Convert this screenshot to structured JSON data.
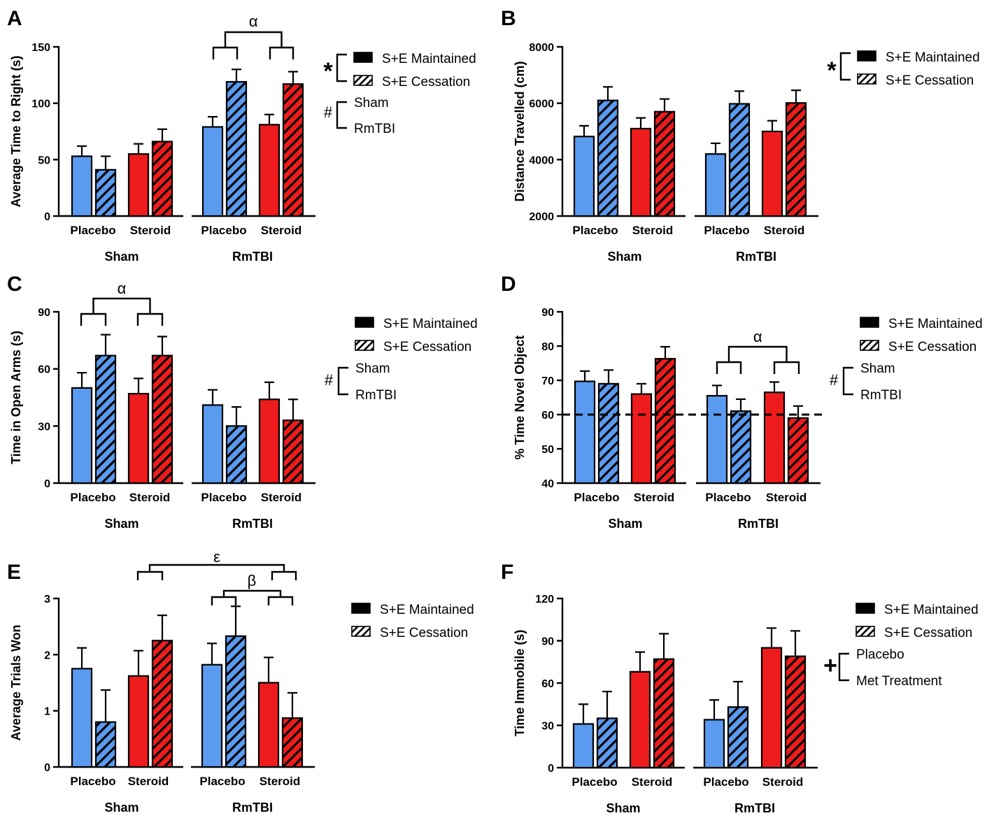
{
  "figure": {
    "bar_colors": {
      "placebo": "#5b9bef",
      "steroid": "#ee1c1c",
      "outline": "#000000"
    },
    "fill_key": {
      "solid": "S+E Maintained",
      "hatched": "S+E Cessation"
    }
  },
  "chart_data": [
    {
      "panel": "A",
      "type": "bar",
      "ylabel": "Average Time to Right (s)",
      "ylim": [
        0,
        150
      ],
      "yticks": [
        "0",
        "50",
        "100",
        "150"
      ],
      "groups": [
        "Sham",
        "RmTBI"
      ],
      "categories": [
        "Placebo",
        "Steroid",
        "Placebo",
        "Steroid"
      ],
      "series": [
        {
          "name": "S+E Maintained",
          "values": [
            53,
            55,
            79,
            81
          ],
          "errors": [
            9,
            9,
            9,
            9
          ]
        },
        {
          "name": "S+E Cessation",
          "values": [
            41,
            66,
            119,
            117
          ],
          "errors": [
            12,
            11,
            11,
            11
          ]
        }
      ],
      "legend": {
        "items": [
          "S+E Maintained",
          "S+E Cessation"
        ],
        "effects": [
          {
            "symbol": "*",
            "labels": [
              "S+E Maintained",
              "S+E Cessation"
            ]
          },
          {
            "symbol": "#",
            "labels": [
              "Sham",
              "RmTBI"
            ]
          }
        ]
      },
      "annotations": [
        {
          "symbol": "α",
          "between": "RmTBI groups"
        }
      ]
    },
    {
      "panel": "B",
      "type": "bar",
      "ylabel": "Distance Travelled (cm)",
      "ylim": [
        2000,
        8000
      ],
      "yticks": [
        "2000",
        "4000",
        "6000",
        "8000"
      ],
      "groups": [
        "Sham",
        "RmTBI"
      ],
      "categories": [
        "Placebo",
        "Steroid",
        "Placebo",
        "Steroid"
      ],
      "series": [
        {
          "name": "S+E Maintained",
          "values": [
            4820,
            5100,
            4200,
            5000
          ],
          "errors": [
            380,
            380,
            380,
            380
          ]
        },
        {
          "name": "S+E Cessation",
          "values": [
            6100,
            5700,
            5980,
            6010
          ],
          "errors": [
            480,
            450,
            450,
            450
          ]
        }
      ],
      "legend": {
        "items": [
          "S+E Maintained",
          "S+E Cessation"
        ],
        "effects": [
          {
            "symbol": "*",
            "labels": [
              "S+E Maintained",
              "S+E Cessation"
            ]
          }
        ]
      },
      "annotations": []
    },
    {
      "panel": "C",
      "type": "bar",
      "ylabel": "Time in Open Arms (s)",
      "ylim": [
        0,
        90
      ],
      "yticks": [
        "0",
        "30",
        "60",
        "90"
      ],
      "groups": [
        "Sham",
        "RmTBI"
      ],
      "categories": [
        "Placebo",
        "Steroid",
        "Placebo",
        "Steroid"
      ],
      "series": [
        {
          "name": "S+E Maintained",
          "values": [
            50,
            47,
            41,
            44
          ],
          "errors": [
            8,
            8,
            8,
            9
          ]
        },
        {
          "name": "S+E Cessation",
          "values": [
            67,
            67,
            30,
            33
          ],
          "errors": [
            11,
            10,
            10,
            11
          ]
        }
      ],
      "legend": {
        "items": [
          "S+E Maintained",
          "S+E Cessation"
        ],
        "effects": [
          {
            "symbol": "#",
            "labels": [
              "Sham",
              "RmTBI"
            ]
          }
        ]
      },
      "annotations": [
        {
          "symbol": "α",
          "between": "Sham groups"
        }
      ]
    },
    {
      "panel": "D",
      "type": "bar",
      "ylabel": "% Time Novel Object",
      "ylim": [
        40,
        90
      ],
      "yticks": [
        "40",
        "50",
        "60",
        "70",
        "80",
        "90"
      ],
      "reference_line": 60,
      "groups": [
        "Sham",
        "RmTBI"
      ],
      "categories": [
        "Placebo",
        "Steroid",
        "Placebo",
        "Steroid"
      ],
      "series": [
        {
          "name": "S+E Maintained",
          "values": [
            69.7,
            66,
            65.5,
            66.5
          ],
          "errors": [
            3,
            3,
            3,
            3
          ]
        },
        {
          "name": "S+E Cessation",
          "values": [
            69,
            76.3,
            61,
            59
          ],
          "errors": [
            4,
            3.5,
            3.5,
            3.5
          ]
        }
      ],
      "legend": {
        "items": [
          "S+E Maintained",
          "S+E Cessation"
        ],
        "effects": [
          {
            "symbol": "#",
            "labels": [
              "Sham",
              "RmTBI"
            ]
          }
        ]
      },
      "annotations": [
        {
          "symbol": "α",
          "between": "RmTBI groups"
        }
      ]
    },
    {
      "panel": "E",
      "type": "bar",
      "ylabel": "Average Trials Won",
      "ylim": [
        0,
        3
      ],
      "yticks": [
        "0",
        "1",
        "2",
        "3"
      ],
      "groups": [
        "Sham",
        "RmTBI"
      ],
      "categories": [
        "Placebo",
        "Steroid",
        "Placebo",
        "Steroid"
      ],
      "series": [
        {
          "name": "S+E Maintained",
          "values": [
            1.75,
            1.62,
            1.82,
            1.5
          ],
          "errors": [
            0.37,
            0.45,
            0.38,
            0.45
          ]
        },
        {
          "name": "S+E Cessation",
          "values": [
            0.8,
            2.25,
            2.33,
            0.87
          ],
          "errors": [
            0.57,
            0.45,
            0.53,
            0.45
          ]
        }
      ],
      "legend": {
        "items": [
          "S+E Maintained",
          "S+E Cessation"
        ],
        "effects": []
      },
      "annotations": [
        {
          "symbol": "ε",
          "between": "Sham Steroid vs RmTBI Steroid"
        },
        {
          "symbol": "β",
          "between": "RmTBI groups"
        }
      ]
    },
    {
      "panel": "F",
      "type": "bar",
      "ylabel": "Time Immobile (s)",
      "ylim": [
        0,
        120
      ],
      "yticks": [
        "0",
        "30",
        "60",
        "90",
        "120"
      ],
      "groups": [
        "Sham",
        "RmTBI"
      ],
      "categories": [
        "Placebo",
        "Steroid",
        "Placebo",
        "Steroid"
      ],
      "series": [
        {
          "name": "S+E Maintained",
          "values": [
            31,
            68,
            34,
            85
          ],
          "errors": [
            14,
            14,
            14,
            14
          ]
        },
        {
          "name": "S+E Cessation",
          "values": [
            35,
            77,
            43,
            79
          ],
          "errors": [
            19,
            18,
            18,
            18
          ]
        }
      ],
      "legend": {
        "items": [
          "S+E Maintained",
          "S+E Cessation"
        ],
        "effects": [
          {
            "symbol": "+",
            "labels": [
              "Placebo",
              "Met Treatment"
            ]
          }
        ]
      },
      "annotations": []
    }
  ]
}
